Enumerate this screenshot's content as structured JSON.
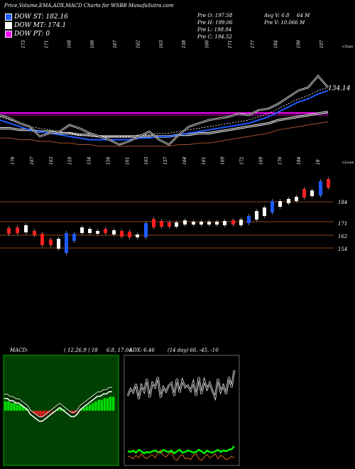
{
  "header": {
    "title": "Price,Volume,EMA,ADX,MACD Charts for WSBB MunafaSutra.com"
  },
  "legend": [
    {
      "label": "DOW ST: 182.16",
      "color": "#1e5bff"
    },
    {
      "label": "DOW MT: 174.1",
      "color": "#ffffff"
    },
    {
      "label": "DOW PT: 0",
      "color": "#ff00ff"
    }
  ],
  "stats": {
    "pre_o": "Pre  O: 197.58",
    "pre_h": "Pre  H: 199.06",
    "pre_l": "Pre  L: 198.94",
    "pre_c": "Pre  C: 194.52",
    "avg_v": "Avg V: 6.8",
    "avg_v_unit": "64  M",
    "pre_v": "Pre  V: 10.066  M"
  },
  "price_panel": {
    "top_numbers": [
      "173",
      "171",
      "168",
      "160",
      "167",
      "162",
      "163",
      "158",
      "166",
      "171",
      "177",
      "184",
      "190",
      "197"
    ],
    "bottom_numbers": [
      "170",
      "167",
      "163",
      "159",
      "154",
      "156",
      "161",
      "163",
      "157",
      "164",
      "161",
      "169",
      "172",
      "169",
      "176",
      "184",
      "18"
    ],
    "last_price_label": "134.14",
    "top_right_label": "<Topo",
    "bottom_right_label": "<Lowe"
  },
  "candle_panel": {
    "level_labels": [
      "184",
      "171",
      "162",
      "154"
    ]
  },
  "macd": {
    "title": "MACD:",
    "values": "( 12,26,9 ) 18",
    "extra": "6.8, 17.04"
  },
  "adx": {
    "title": "ADX: 6.46",
    "values": "(14 day) 66, -45, -10"
  },
  "chart_data": [
    {
      "type": "line",
      "title": "Price,Volume,EMA,ADX,MACD Charts for WSBB MunafaSutra.com",
      "series": [
        {
          "name": "Price",
          "values": [
            173,
            171,
            168,
            166,
            160,
            162,
            163,
            167,
            165,
            162,
            160,
            158,
            155,
            157,
            160,
            163,
            158,
            155,
            161,
            166,
            168,
            170,
            171,
            172,
            174,
            173,
            176,
            177,
            180,
            184,
            188,
            190,
            197,
            190
          ]
        },
        {
          "name": "DOW ST",
          "values": [
            170,
            168,
            166,
            164,
            163,
            162,
            161,
            160,
            159,
            158,
            158,
            158,
            158,
            158,
            159,
            159,
            160,
            160,
            161,
            162,
            163,
            164,
            165,
            166,
            167,
            168,
            170,
            172,
            175,
            178,
            181,
            183,
            186,
            188
          ]
        },
        {
          "name": "DOW MT",
          "values": [
            165,
            165,
            164,
            164,
            163,
            163,
            162,
            162,
            161,
            161,
            160,
            160,
            160,
            160,
            160,
            160,
            160,
            160,
            161,
            161,
            162,
            162,
            163,
            164,
            165,
            166,
            167,
            168,
            170,
            171,
            172,
            173,
            174,
            175
          ]
        },
        {
          "name": "DOW PT",
          "values": [
            0
          ]
        }
      ]
    },
    {
      "type": "bar",
      "title": "MACD:",
      "series": [
        {
          "name": "MACD histogram",
          "values": [
            6,
            6,
            5,
            5,
            4,
            4,
            3,
            2,
            1,
            -1,
            -2,
            -3,
            -4,
            -4,
            -3,
            -2,
            -1,
            0,
            1,
            2,
            1,
            0,
            -1,
            -2,
            -2,
            -1,
            1,
            2,
            3,
            4,
            5,
            6,
            7,
            7,
            8,
            8,
            9,
            9
          ]
        }
      ]
    },
    {
      "type": "line",
      "title": "ADX: 6.46",
      "series": [
        {
          "name": "+DI",
          "values": [
            40,
            48,
            44,
            54,
            36,
            52,
            45,
            60,
            38,
            55,
            50,
            62,
            38,
            50,
            45,
            52,
            55,
            40,
            60,
            44,
            58,
            50,
            52,
            46,
            56,
            40,
            62,
            42,
            58,
            48,
            55,
            46,
            38,
            60,
            45,
            52,
            42,
            62,
            50,
            70
          ]
        },
        {
          "name": "ADX",
          "values": [
            20,
            19,
            21,
            18,
            22,
            20,
            17,
            19,
            18,
            20,
            21,
            19,
            18,
            22,
            20,
            19,
            21,
            17,
            20,
            22,
            18,
            19,
            21,
            20,
            18,
            19,
            22,
            20,
            17,
            21,
            19,
            18,
            20,
            22,
            19,
            21,
            20,
            22,
            23,
            27
          ]
        },
        {
          "name": "-DI",
          "values": [
            15,
            14,
            12,
            16,
            13,
            18,
            14,
            12,
            15,
            17,
            13,
            19,
            22,
            16,
            14,
            18,
            20,
            12,
            10,
            15,
            17,
            12,
            13,
            11,
            16,
            18,
            12,
            10,
            14,
            17,
            13,
            15,
            18,
            12,
            16,
            14,
            11,
            12,
            15,
            13
          ]
        }
      ]
    }
  ]
}
